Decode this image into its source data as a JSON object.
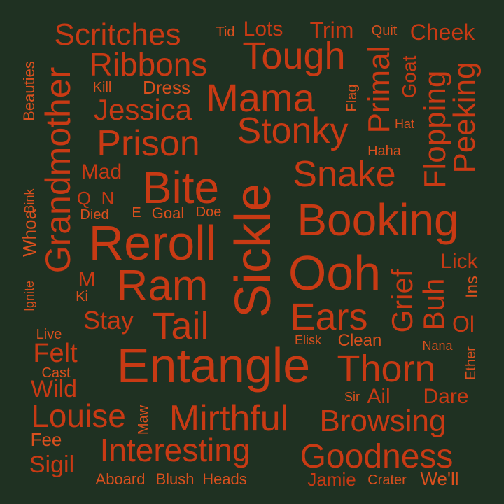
{
  "colors": {
    "background": "#1f3122",
    "word": "#c83a14",
    "word_alt": "#d9501e"
  },
  "words": [
    "Reroll",
    "Sickle",
    "Entangle",
    "Booking",
    "Ooh",
    "Grandmother",
    "Ram",
    "Bite",
    "Tough",
    "Mama",
    "Stonky",
    "Snake",
    "Prison",
    "Thorn",
    "Mirthful",
    "Tail",
    "Ears",
    "Interesting",
    "Goodness",
    "Browsing",
    "Louise",
    "Jessica",
    "Ribbons",
    "Scritches",
    "Primal",
    "Flopping",
    "Peeking",
    "Grief",
    "Buh",
    "Stay",
    "Felt",
    "Wild",
    "Sigil",
    "Jamie",
    "Cheek",
    "Trim",
    "Lots",
    "Dress",
    "Mad",
    "Goat",
    "Lick",
    "Dare",
    "Ail",
    "Clean",
    "Heads",
    "Blush",
    "Aboard",
    "Crater",
    "We'll",
    "Fee",
    "Cast",
    "Live",
    "Maw",
    "Ol",
    "Ins",
    "Ether",
    "Nana",
    "Elisk",
    "Sir",
    "Haha",
    "Hat",
    "Flag",
    "Quit",
    "Tid",
    "Kill",
    "Beauties",
    "Bink",
    "Whoa",
    "Ignite",
    "Q",
    "N",
    "Died",
    "E",
    "Goal",
    "Doe",
    "M",
    "Ki"
  ]
}
